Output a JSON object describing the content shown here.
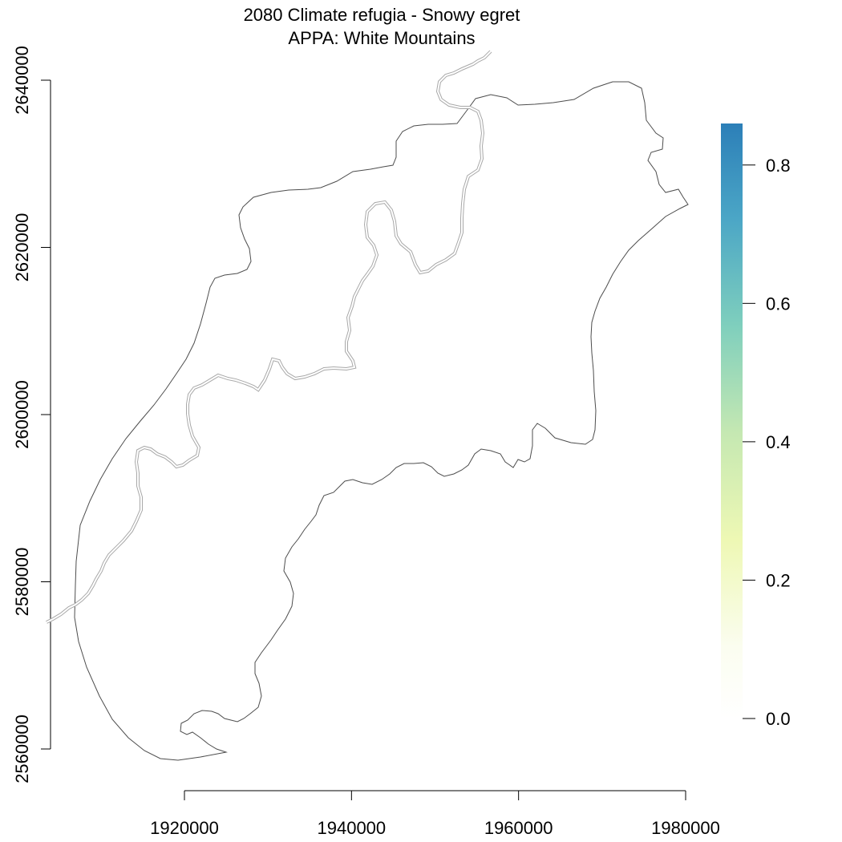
{
  "title": {
    "line1": "2080 Climate refugia - Snowy egret",
    "line2": "APPA: White Mountains"
  },
  "map": {
    "x_axis": {
      "tick_labels": [
        "1920000",
        "1940000",
        "1960000",
        "1980000"
      ],
      "ticks": [
        1920000,
        1940000,
        1960000,
        1980000
      ],
      "range": [
        1920000,
        1980000
      ]
    },
    "y_axis": {
      "tick_labels": [
        "2560000",
        "2580000",
        "2600000",
        "2620000",
        "2640000"
      ],
      "ticks": [
        2560000,
        2580000,
        2600000,
        2620000,
        2640000
      ],
      "range": [
        2560000,
        2640000
      ]
    },
    "features": [
      {
        "name": "APPA boundary",
        "style": "solid",
        "color": "#4d4d4d"
      },
      {
        "name": "Appalachian Trail",
        "style": "dashed-double",
        "color": "#a8a8a8"
      }
    ]
  },
  "legend": {
    "scale_type": "continuous-colorbar",
    "min": 0.0,
    "max": 0.86,
    "tick_labels": [
      "0.0",
      "0.2",
      "0.4",
      "0.6",
      "0.8"
    ],
    "ticks": [
      0.0,
      0.2,
      0.4,
      0.6,
      0.8
    ],
    "colors": [
      "#ffffff",
      "#f7fbe4",
      "#edf8b1",
      "#c7e9b4",
      "#7fcdbb",
      "#41b6c4",
      "#2c7fb8"
    ]
  }
}
